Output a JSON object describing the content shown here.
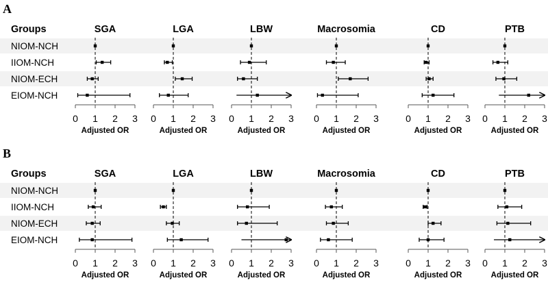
{
  "chart_data": [
    {
      "type": "forest",
      "panel_label": "A",
      "groups_header": "Groups",
      "groups": [
        "NIOM-NCH",
        "IIOM-NCH",
        "NIOM-ECH",
        "EIOM-NCH"
      ],
      "xlabel": "Adjusted OR",
      "xlim": [
        0,
        3
      ],
      "xticks": [
        0,
        1,
        2,
        3
      ],
      "reference_line": 1,
      "outcomes": [
        {
          "name": "SGA",
          "rows": [
            {
              "or": 1.0,
              "lo": 1.0,
              "hi": 1.0,
              "arrow": false
            },
            {
              "or": 1.35,
              "lo": 1.05,
              "hi": 1.78,
              "arrow": false
            },
            {
              "or": 0.85,
              "lo": 0.6,
              "hi": 1.15,
              "arrow": false
            },
            {
              "or": 0.6,
              "lo": 0.12,
              "hi": 2.75,
              "arrow": false
            }
          ]
        },
        {
          "name": "LGA",
          "rows": [
            {
              "or": 1.0,
              "lo": 1.0,
              "hi": 1.0,
              "arrow": false
            },
            {
              "or": 0.7,
              "lo": 0.55,
              "hi": 0.95,
              "arrow": false
            },
            {
              "or": 1.45,
              "lo": 1.1,
              "hi": 1.95,
              "arrow": false
            },
            {
              "or": 0.75,
              "lo": 0.3,
              "hi": 1.75,
              "arrow": false
            }
          ]
        },
        {
          "name": "LBW",
          "rows": [
            {
              "or": 1.0,
              "lo": 1.0,
              "hi": 1.0,
              "arrow": false
            },
            {
              "or": 0.9,
              "lo": 0.45,
              "hi": 1.75,
              "arrow": false
            },
            {
              "or": 0.6,
              "lo": 0.3,
              "hi": 1.3,
              "arrow": false
            },
            {
              "or": 1.3,
              "lo": 0.25,
              "hi": 3.0,
              "arrow": true
            }
          ]
        },
        {
          "name": "Macrosomia",
          "rows": [
            {
              "or": 1.0,
              "lo": 1.0,
              "hi": 1.0,
              "arrow": false
            },
            {
              "or": 0.85,
              "lo": 0.5,
              "hi": 1.45,
              "arrow": false
            },
            {
              "or": 1.7,
              "lo": 1.1,
              "hi": 2.6,
              "arrow": false
            },
            {
              "or": 0.3,
              "lo": 0.05,
              "hi": 2.1,
              "arrow": false
            }
          ]
        },
        {
          "name": "CD",
          "rows": [
            {
              "or": 1.0,
              "lo": 1.0,
              "hi": 1.0,
              "arrow": false
            },
            {
              "or": 0.9,
              "lo": 0.8,
              "hi": 1.05,
              "arrow": false
            },
            {
              "or": 1.05,
              "lo": 0.9,
              "hi": 1.25,
              "arrow": false
            },
            {
              "or": 1.25,
              "lo": 0.7,
              "hi": 2.3,
              "arrow": false
            }
          ]
        },
        {
          "name": "PTB",
          "rows": [
            {
              "or": 1.0,
              "lo": 1.0,
              "hi": 1.0,
              "arrow": false
            },
            {
              "or": 0.65,
              "lo": 0.4,
              "hi": 1.15,
              "arrow": false
            },
            {
              "or": 0.95,
              "lo": 0.55,
              "hi": 1.6,
              "arrow": false
            },
            {
              "or": 2.2,
              "lo": 0.7,
              "hi": 3.0,
              "arrow": true
            }
          ]
        }
      ]
    },
    {
      "type": "forest",
      "panel_label": "B",
      "groups_header": "Groups",
      "groups": [
        "NIOM-NCH",
        "IIOM-NCH",
        "NIOM-ECH",
        "EIOM-NCH"
      ],
      "xlabel": "Adjusted OR",
      "xlim": [
        0,
        3
      ],
      "xticks": [
        0,
        1,
        2,
        3
      ],
      "reference_line": 1,
      "outcomes": [
        {
          "name": "SGA",
          "rows": [
            {
              "or": 1.0,
              "lo": 1.0,
              "hi": 1.0,
              "arrow": false
            },
            {
              "or": 0.9,
              "lo": 0.65,
              "hi": 1.3,
              "arrow": false
            },
            {
              "or": 0.85,
              "lo": 0.55,
              "hi": 1.25,
              "arrow": false
            },
            {
              "or": 0.85,
              "lo": 0.2,
              "hi": 2.85,
              "arrow": false
            }
          ]
        },
        {
          "name": "LGA",
          "rows": [
            {
              "or": 1.0,
              "lo": 1.0,
              "hi": 1.0,
              "arrow": false
            },
            {
              "or": 0.5,
              "lo": 0.35,
              "hi": 0.65,
              "arrow": false
            },
            {
              "or": 0.95,
              "lo": 0.65,
              "hi": 1.3,
              "arrow": false
            },
            {
              "or": 1.4,
              "lo": 0.7,
              "hi": 2.75,
              "arrow": false
            }
          ]
        },
        {
          "name": "LBW",
          "rows": [
            {
              "or": 1.0,
              "lo": 1.0,
              "hi": 1.0,
              "arrow": false
            },
            {
              "or": 0.8,
              "lo": 0.3,
              "hi": 1.9,
              "arrow": false
            },
            {
              "or": 0.75,
              "lo": 0.3,
              "hi": 2.3,
              "arrow": false
            },
            {
              "or": 2.75,
              "lo": 0.5,
              "hi": 3.0,
              "arrow": true
            }
          ]
        },
        {
          "name": "Macrosomia",
          "rows": [
            {
              "or": 1.0,
              "lo": 1.0,
              "hi": 1.0,
              "arrow": false
            },
            {
              "or": 0.75,
              "lo": 0.45,
              "hi": 1.3,
              "arrow": false
            },
            {
              "or": 0.85,
              "lo": 0.5,
              "hi": 1.6,
              "arrow": false
            },
            {
              "or": 0.6,
              "lo": 0.2,
              "hi": 1.8,
              "arrow": false
            }
          ]
        },
        {
          "name": "CD",
          "rows": [
            {
              "or": 1.0,
              "lo": 1.0,
              "hi": 1.0,
              "arrow": false
            },
            {
              "or": 0.85,
              "lo": 0.75,
              "hi": 0.95,
              "arrow": false
            },
            {
              "or": 1.25,
              "lo": 1.0,
              "hi": 1.65,
              "arrow": false
            },
            {
              "or": 1.0,
              "lo": 0.55,
              "hi": 1.8,
              "arrow": false
            }
          ]
        },
        {
          "name": "PTB",
          "rows": [
            {
              "or": 1.0,
              "lo": 1.0,
              "hi": 1.0,
              "arrow": false
            },
            {
              "or": 1.1,
              "lo": 0.65,
              "hi": 1.85,
              "arrow": false
            },
            {
              "or": 1.15,
              "lo": 0.6,
              "hi": 2.3,
              "arrow": false
            },
            {
              "or": 1.25,
              "lo": 0.45,
              "hi": 3.0,
              "arrow": true
            }
          ]
        }
      ]
    }
  ]
}
